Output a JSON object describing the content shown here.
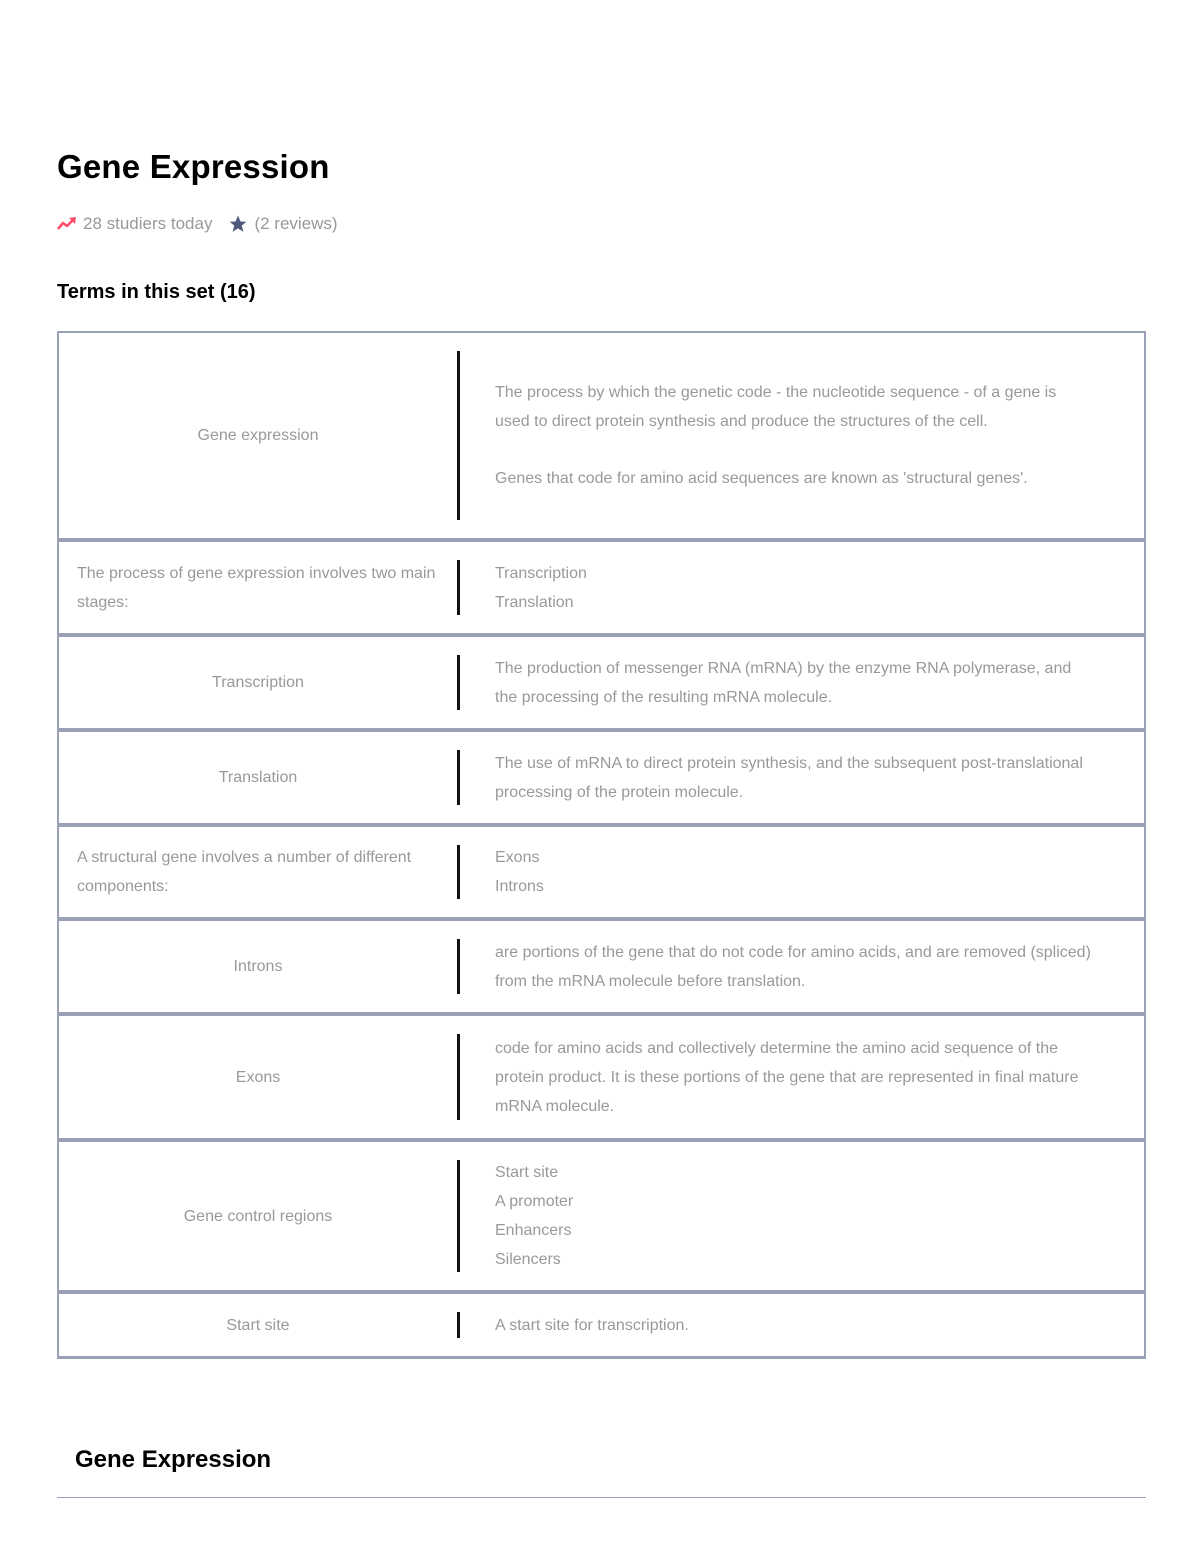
{
  "page_title": "Gene Expression",
  "meta": {
    "studiers": "28 studiers today",
    "reviews": "(2 reviews)",
    "trend_icon_color": "#ff4d6d",
    "star_icon_color": "#4f5a7a"
  },
  "terms_heading": "Terms in this set (16)",
  "terms": [
    {
      "term": "Gene expression",
      "centered": true,
      "definition_paragraphs": [
        "The process by which the genetic code - the nucleotide sequence - of a gene is used to direct protein synthesis and produce the structures of the cell.",
        "Genes that code for amino acid sequences are known as 'structural genes'."
      ]
    },
    {
      "term": "The process of gene expression involves two main stages:",
      "centered": false,
      "definition_lines": [
        "Transcription",
        "Translation"
      ]
    },
    {
      "term": "Transcription",
      "centered": true,
      "definition_paragraphs": [
        "The production of messenger RNA (mRNA) by the enzyme RNA polymerase, and the processing of the resulting mRNA molecule."
      ]
    },
    {
      "term": "Translation",
      "centered": true,
      "definition_paragraphs": [
        "The use of mRNA to direct protein synthesis, and the subsequent post-translational processing of the protein molecule."
      ]
    },
    {
      "term": "A structural gene involves a number of different components:",
      "centered": false,
      "definition_lines": [
        "Exons",
        "Introns"
      ]
    },
    {
      "term": "Introns",
      "centered": true,
      "definition_paragraphs": [
        "are portions of the gene that do not code for amino acids, and are removed (spliced) from the mRNA molecule before translation."
      ]
    },
    {
      "term": "Exons",
      "centered": true,
      "definition_paragraphs": [
        "code for amino acids and collectively determine the amino acid sequence of the protein product. It is these portions of the gene that are represented in final mature mRNA molecule."
      ]
    },
    {
      "term": "Gene control regions",
      "centered": true,
      "definition_lines": [
        "Start site",
        "A promoter",
        "Enhancers",
        "Silencers"
      ]
    },
    {
      "term": "Start site",
      "centered": true,
      "definition_paragraphs": [
        "A start site for transcription."
      ]
    }
  ],
  "footer_title": "Gene Expression"
}
